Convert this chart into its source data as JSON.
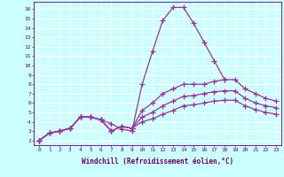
{
  "x": [
    0,
    1,
    2,
    3,
    4,
    5,
    6,
    7,
    8,
    9,
    10,
    11,
    12,
    13,
    14,
    15,
    16,
    17,
    18,
    19,
    20,
    21,
    22,
    23
  ],
  "line1": [
    2.0,
    2.8,
    3.0,
    3.3,
    4.5,
    4.5,
    4.2,
    3.8,
    3.2,
    3.0,
    8.0,
    11.5,
    14.8,
    16.2,
    16.2,
    14.5,
    12.5,
    10.5,
    8.5,
    null,
    null,
    null,
    null,
    null
  ],
  "line2": [
    2.0,
    2.8,
    3.0,
    3.3,
    4.5,
    4.5,
    4.2,
    3.0,
    3.5,
    3.3,
    5.2,
    6.0,
    7.0,
    7.5,
    8.0,
    8.0,
    8.0,
    8.3,
    8.5,
    8.5,
    7.5,
    7.0,
    6.5,
    6.2
  ],
  "line3": [
    2.0,
    2.8,
    3.0,
    3.3,
    4.5,
    4.5,
    4.2,
    3.0,
    3.5,
    3.3,
    4.5,
    5.0,
    5.7,
    6.2,
    6.7,
    6.8,
    7.0,
    7.2,
    7.3,
    7.3,
    6.5,
    6.0,
    5.7,
    5.5
  ],
  "line4": [
    2.0,
    2.8,
    3.0,
    3.3,
    4.5,
    4.5,
    4.2,
    3.0,
    3.5,
    3.3,
    4.0,
    4.3,
    4.8,
    5.2,
    5.7,
    5.8,
    6.0,
    6.2,
    6.3,
    6.3,
    5.7,
    5.3,
    5.0,
    4.8
  ],
  "line_color": "#993399",
  "bg_color": "#ccffff",
  "grid_color": "#ffffff",
  "xlabel": "Windchill (Refroidissement éolien,°C)",
  "ylabel_ticks": [
    2,
    3,
    4,
    5,
    6,
    7,
    8,
    9,
    10,
    11,
    12,
    13,
    14,
    15,
    16
  ],
  "xlim": [
    -0.5,
    23.5
  ],
  "ylim": [
    1.5,
    16.8
  ],
  "xlabel_color": "#660066",
  "tick_color": "#660066",
  "marker": "+",
  "markersize": 4,
  "linewidth": 0.9
}
